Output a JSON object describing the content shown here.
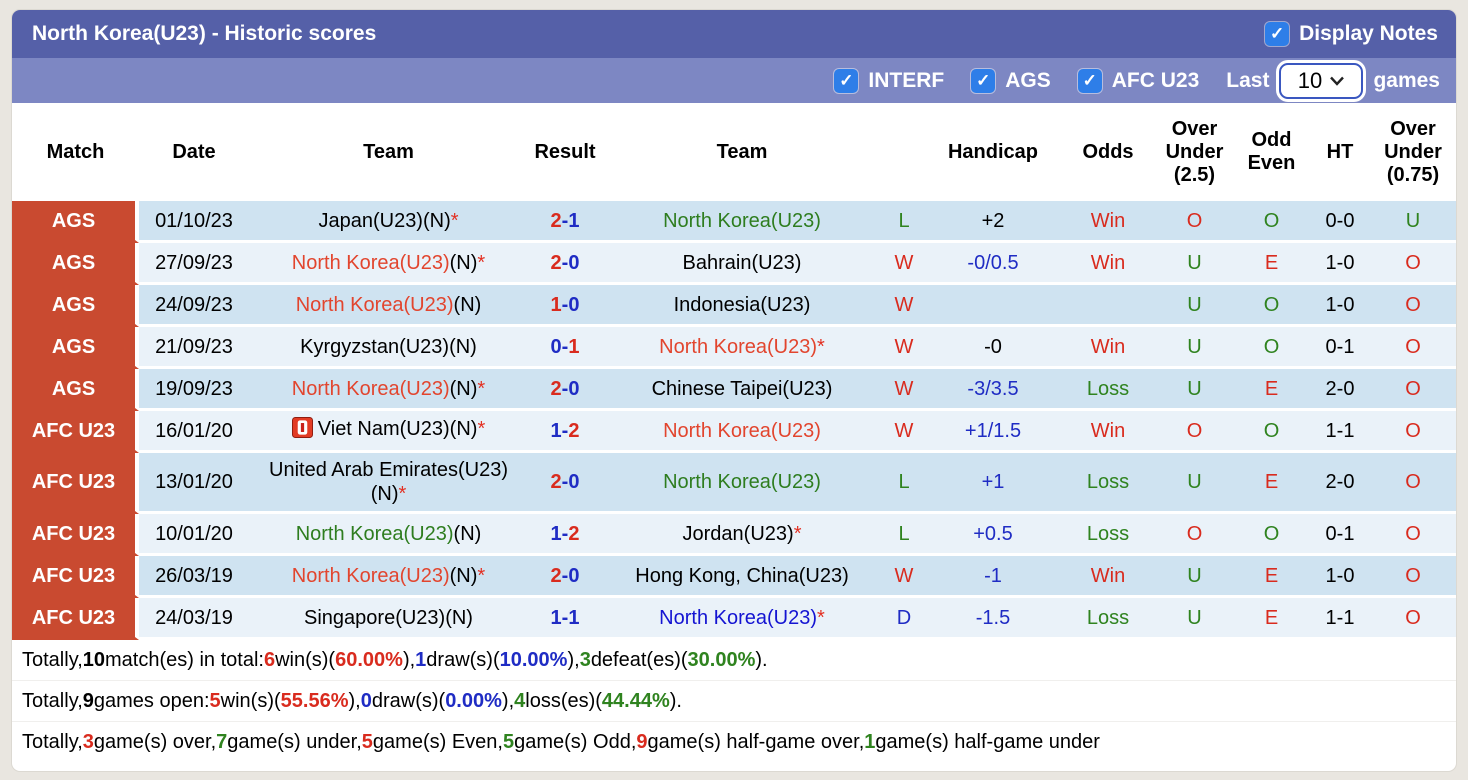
{
  "colors": {
    "header_dark": "#5560a8",
    "header_light": "#7d87c3",
    "match_badge_red": "#c94a30",
    "row_stripe_dark": "#cfe3f1",
    "row_stripe_light": "#eaf2f9",
    "checkbox_blue": "#2e7ee8",
    "win_red": "#d92b1e",
    "loss_green": "#2f831f",
    "draw_blue": "#1f2cc4",
    "team_win_red": "#e2452e",
    "team_loss_green": "#2e7d1f",
    "team_draw_blue": "#1414d2"
  },
  "header": {
    "title": "North Korea(U23) - Historic scores",
    "display_notes": {
      "label": "Display Notes",
      "checked": true
    },
    "filters": [
      {
        "label": "INTERF",
        "checked": true
      },
      {
        "label": "AGS",
        "checked": true
      },
      {
        "label": "AFC U23",
        "checked": true
      }
    ],
    "last_games": {
      "prefix": "Last",
      "value": "10",
      "suffix": "games"
    }
  },
  "table": {
    "columns": [
      "Match",
      "Date",
      "Team",
      "Result",
      "Team",
      "",
      "Handicap",
      "Odds",
      "Over\nUnder\n(2.5)",
      "Odd\nEven",
      "HT",
      "Over\nUnder\n(0.75)"
    ],
    "rows": [
      {
        "competition": "AGS",
        "date": "01/10/23",
        "home": {
          "name": "Japan(U23)(N)",
          "suffix": "",
          "color": "black",
          "star": true,
          "icon": null
        },
        "score": {
          "home": "2",
          "away": "1",
          "home_color": "red",
          "away_color": "blue"
        },
        "away": {
          "name": "North Korea(U23)",
          "suffix": "",
          "color": "green",
          "star": false,
          "icon": null
        },
        "wdl": {
          "text": "L",
          "color": "green"
        },
        "handicap": {
          "text": "+2",
          "color": "black"
        },
        "odds": {
          "text": "Win",
          "color": "red"
        },
        "over_under_25": {
          "text": "O",
          "color": "red"
        },
        "odd_even": {
          "text": "O",
          "color": "green"
        },
        "ht": "0-0",
        "over_under_075": {
          "text": "U",
          "color": "green"
        }
      },
      {
        "competition": "AGS",
        "date": "27/09/23",
        "home": {
          "name": "North Korea(U23)",
          "suffix": "(N)",
          "color": "red",
          "star": true,
          "icon": null
        },
        "score": {
          "home": "2",
          "away": "0",
          "home_color": "red",
          "away_color": "blue"
        },
        "away": {
          "name": "Bahrain(U23)",
          "suffix": "",
          "color": "black",
          "star": false,
          "icon": null
        },
        "wdl": {
          "text": "W",
          "color": "red"
        },
        "handicap": {
          "text": "-0/0.5",
          "color": "blue"
        },
        "odds": {
          "text": "Win",
          "color": "red"
        },
        "over_under_25": {
          "text": "U",
          "color": "green"
        },
        "odd_even": {
          "text": "E",
          "color": "red"
        },
        "ht": "1-0",
        "over_under_075": {
          "text": "O",
          "color": "red"
        }
      },
      {
        "competition": "AGS",
        "date": "24/09/23",
        "home": {
          "name": "North Korea(U23)",
          "suffix": "(N)",
          "color": "red",
          "star": false,
          "icon": null
        },
        "score": {
          "home": "1",
          "away": "0",
          "home_color": "red",
          "away_color": "blue"
        },
        "away": {
          "name": "Indonesia(U23)",
          "suffix": "",
          "color": "black",
          "star": false,
          "icon": null
        },
        "wdl": {
          "text": "W",
          "color": "red"
        },
        "handicap": {
          "text": "",
          "color": "black"
        },
        "odds": {
          "text": "",
          "color": "black"
        },
        "over_under_25": {
          "text": "U",
          "color": "green"
        },
        "odd_even": {
          "text": "O",
          "color": "green"
        },
        "ht": "1-0",
        "over_under_075": {
          "text": "O",
          "color": "red"
        }
      },
      {
        "competition": "AGS",
        "date": "21/09/23",
        "home": {
          "name": "Kyrgyzstan(U23)(N)",
          "suffix": "",
          "color": "black",
          "star": false,
          "icon": null
        },
        "score": {
          "home": "0",
          "away": "1",
          "home_color": "blue",
          "away_color": "red"
        },
        "away": {
          "name": "North Korea(U23)",
          "suffix": "",
          "color": "red",
          "star": true,
          "icon": null
        },
        "wdl": {
          "text": "W",
          "color": "red"
        },
        "handicap": {
          "text": "-0",
          "color": "black"
        },
        "odds": {
          "text": "Win",
          "color": "red"
        },
        "over_under_25": {
          "text": "U",
          "color": "green"
        },
        "odd_even": {
          "text": "O",
          "color": "green"
        },
        "ht": "0-1",
        "over_under_075": {
          "text": "O",
          "color": "red"
        }
      },
      {
        "competition": "AGS",
        "date": "19/09/23",
        "home": {
          "name": "North Korea(U23)",
          "suffix": "(N)",
          "color": "red",
          "star": true,
          "icon": null
        },
        "score": {
          "home": "2",
          "away": "0",
          "home_color": "red",
          "away_color": "blue"
        },
        "away": {
          "name": "Chinese Taipei(U23)",
          "suffix": "",
          "color": "black",
          "star": false,
          "icon": null
        },
        "wdl": {
          "text": "W",
          "color": "red"
        },
        "handicap": {
          "text": "-3/3.5",
          "color": "blue"
        },
        "odds": {
          "text": "Loss",
          "color": "green"
        },
        "over_under_25": {
          "text": "U",
          "color": "green"
        },
        "odd_even": {
          "text": "E",
          "color": "red"
        },
        "ht": "2-0",
        "over_under_075": {
          "text": "O",
          "color": "red"
        }
      },
      {
        "competition": "AFC U23",
        "date": "16/01/20",
        "home": {
          "name": "Viet Nam(U23)(N)",
          "suffix": "",
          "color": "black",
          "star": true,
          "icon": "vietnam-flag-icon"
        },
        "score": {
          "home": "1",
          "away": "2",
          "home_color": "blue",
          "away_color": "red"
        },
        "away": {
          "name": "North Korea(U23)",
          "suffix": "",
          "color": "red",
          "star": false,
          "icon": null
        },
        "wdl": {
          "text": "W",
          "color": "red"
        },
        "handicap": {
          "text": "+1/1.5",
          "color": "blue"
        },
        "odds": {
          "text": "Win",
          "color": "red"
        },
        "over_under_25": {
          "text": "O",
          "color": "red"
        },
        "odd_even": {
          "text": "O",
          "color": "green"
        },
        "ht": "1-1",
        "over_under_075": {
          "text": "O",
          "color": "red"
        }
      },
      {
        "competition": "AFC U23",
        "date": "13/01/20",
        "home": {
          "name": "United Arab Emirates(U23)(N)",
          "suffix": "",
          "color": "black",
          "star": true,
          "icon": null
        },
        "score": {
          "home": "2",
          "away": "0",
          "home_color": "red",
          "away_color": "blue"
        },
        "away": {
          "name": "North Korea(U23)",
          "suffix": "",
          "color": "green",
          "star": false,
          "icon": null
        },
        "wdl": {
          "text": "L",
          "color": "green"
        },
        "handicap": {
          "text": "+1",
          "color": "blue"
        },
        "odds": {
          "text": "Loss",
          "color": "green"
        },
        "over_under_25": {
          "text": "U",
          "color": "green"
        },
        "odd_even": {
          "text": "E",
          "color": "red"
        },
        "ht": "2-0",
        "over_under_075": {
          "text": "O",
          "color": "red"
        }
      },
      {
        "competition": "AFC U23",
        "date": "10/01/20",
        "home": {
          "name": "North Korea(U23)",
          "suffix": "(N)",
          "color": "green",
          "star": false,
          "icon": null
        },
        "score": {
          "home": "1",
          "away": "2",
          "home_color": "blue",
          "away_color": "red"
        },
        "away": {
          "name": "Jordan(U23)",
          "suffix": "",
          "color": "black",
          "star": true,
          "icon": null
        },
        "wdl": {
          "text": "L",
          "color": "green"
        },
        "handicap": {
          "text": "+0.5",
          "color": "blue"
        },
        "odds": {
          "text": "Loss",
          "color": "green"
        },
        "over_under_25": {
          "text": "O",
          "color": "red"
        },
        "odd_even": {
          "text": "O",
          "color": "green"
        },
        "ht": "0-1",
        "over_under_075": {
          "text": "O",
          "color": "red"
        }
      },
      {
        "competition": "AFC U23",
        "date": "26/03/19",
        "home": {
          "name": "North Korea(U23)",
          "suffix": "(N)",
          "color": "red",
          "star": true,
          "icon": null
        },
        "score": {
          "home": "2",
          "away": "0",
          "home_color": "red",
          "away_color": "blue"
        },
        "away": {
          "name": "Hong Kong, China(U23)",
          "suffix": "",
          "color": "black",
          "star": false,
          "icon": null
        },
        "wdl": {
          "text": "W",
          "color": "red"
        },
        "handicap": {
          "text": "-1",
          "color": "blue"
        },
        "odds": {
          "text": "Win",
          "color": "red"
        },
        "over_under_25": {
          "text": "U",
          "color": "green"
        },
        "odd_even": {
          "text": "E",
          "color": "red"
        },
        "ht": "1-0",
        "over_under_075": {
          "text": "O",
          "color": "red"
        }
      },
      {
        "competition": "AFC U23",
        "date": "24/03/19",
        "home": {
          "name": "Singapore(U23)(N)",
          "suffix": "",
          "color": "black",
          "star": false,
          "icon": null
        },
        "score": {
          "home": "1",
          "away": "1",
          "home_color": "blue",
          "away_color": "blue"
        },
        "away": {
          "name": "North Korea(U23)",
          "suffix": "",
          "color": "blue",
          "star": true,
          "icon": null
        },
        "wdl": {
          "text": "D",
          "color": "blue"
        },
        "handicap": {
          "text": "-1.5",
          "color": "blue"
        },
        "odds": {
          "text": "Loss",
          "color": "green"
        },
        "over_under_25": {
          "text": "U",
          "color": "green"
        },
        "odd_even": {
          "text": "E",
          "color": "red"
        },
        "ht": "1-1",
        "over_under_075": {
          "text": "O",
          "color": "red"
        }
      }
    ]
  },
  "summary": {
    "lines": [
      [
        {
          "t": "Totally, ",
          "c": "black",
          "b": false
        },
        {
          "t": "10",
          "c": "black",
          "b": true
        },
        {
          "t": " match(es) in total: ",
          "c": "black",
          "b": false
        },
        {
          "t": "6",
          "c": "red",
          "b": true
        },
        {
          "t": " win(s)(",
          "c": "black",
          "b": false
        },
        {
          "t": "60.00%",
          "c": "red",
          "b": true
        },
        {
          "t": "), ",
          "c": "black",
          "b": false
        },
        {
          "t": "1",
          "c": "blue",
          "b": true
        },
        {
          "t": " draw(s)(",
          "c": "black",
          "b": false
        },
        {
          "t": "10.00%",
          "c": "blue",
          "b": true
        },
        {
          "t": "), ",
          "c": "black",
          "b": false
        },
        {
          "t": "3",
          "c": "green",
          "b": true
        },
        {
          "t": " defeat(es)(",
          "c": "black",
          "b": false
        },
        {
          "t": "30.00%",
          "c": "green",
          "b": true
        },
        {
          "t": ").",
          "c": "black",
          "b": false
        }
      ],
      [
        {
          "t": "Totally, ",
          "c": "black",
          "b": false
        },
        {
          "t": "9",
          "c": "black",
          "b": true
        },
        {
          "t": " games open: ",
          "c": "black",
          "b": false
        },
        {
          "t": "5",
          "c": "red",
          "b": true
        },
        {
          "t": " win(s)(",
          "c": "black",
          "b": false
        },
        {
          "t": "55.56%",
          "c": "red",
          "b": true
        },
        {
          "t": "), ",
          "c": "black",
          "b": false
        },
        {
          "t": "0",
          "c": "blue",
          "b": true
        },
        {
          "t": " draw(s)(",
          "c": "black",
          "b": false
        },
        {
          "t": "0.00%",
          "c": "blue",
          "b": true
        },
        {
          "t": "), ",
          "c": "black",
          "b": false
        },
        {
          "t": "4",
          "c": "green",
          "b": true
        },
        {
          "t": " loss(es)(",
          "c": "black",
          "b": false
        },
        {
          "t": "44.44%",
          "c": "green",
          "b": true
        },
        {
          "t": ").",
          "c": "black",
          "b": false
        }
      ],
      [
        {
          "t": "Totally, ",
          "c": "black",
          "b": false
        },
        {
          "t": "3",
          "c": "red",
          "b": true
        },
        {
          "t": " game(s) over, ",
          "c": "black",
          "b": false
        },
        {
          "t": "7",
          "c": "green",
          "b": true
        },
        {
          "t": " game(s) under, ",
          "c": "black",
          "b": false
        },
        {
          "t": "5",
          "c": "red",
          "b": true
        },
        {
          "t": " game(s) Even, ",
          "c": "black",
          "b": false
        },
        {
          "t": "5",
          "c": "green",
          "b": true
        },
        {
          "t": " game(s) Odd, ",
          "c": "black",
          "b": false
        },
        {
          "t": "9",
          "c": "red",
          "b": true
        },
        {
          "t": " game(s) half-game over, ",
          "c": "black",
          "b": false
        },
        {
          "t": "1",
          "c": "green",
          "b": true
        },
        {
          "t": " game(s) half-game under",
          "c": "black",
          "b": false
        }
      ]
    ]
  }
}
